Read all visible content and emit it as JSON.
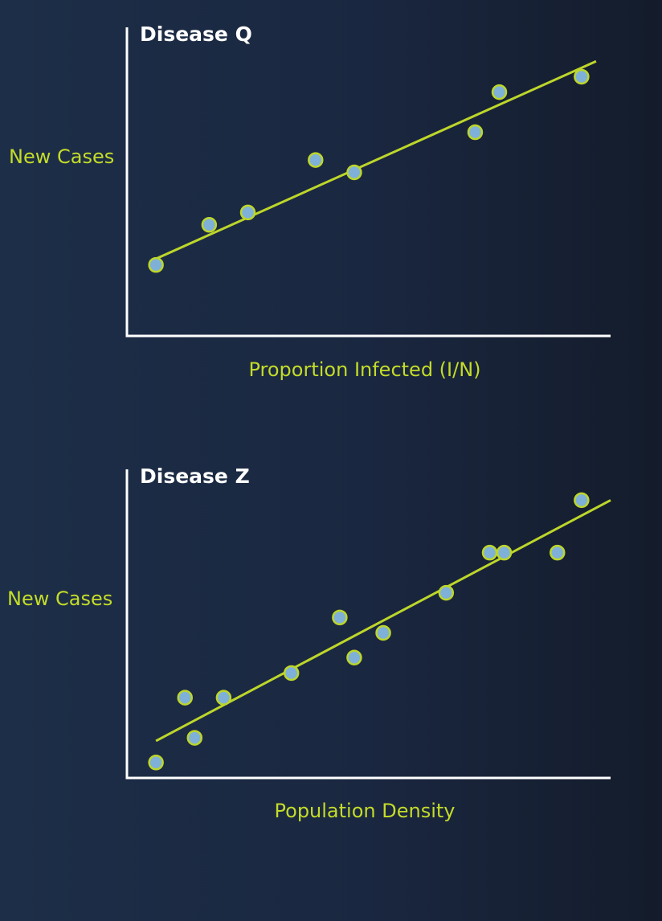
{
  "colors": {
    "axis": "#ffffff",
    "trend_line": "#bdd62a",
    "point_fill": "#7fb1d8",
    "point_stroke": "#bdd62a",
    "label": "#c4dc28",
    "title": "#ffffff"
  },
  "chart_data": [
    {
      "type": "scatter",
      "title": "Disease Q",
      "xlabel": "Proportion Infected (I/N)",
      "ylabel": "New Cases",
      "xlim": [
        0,
        10
      ],
      "ylim": [
        0,
        10
      ],
      "tick_labels": "none",
      "grid": false,
      "points": [
        {
          "x": 0.6,
          "y": 2.3
        },
        {
          "x": 1.7,
          "y": 3.6
        },
        {
          "x": 2.5,
          "y": 4.0
        },
        {
          "x": 3.9,
          "y": 5.7
        },
        {
          "x": 4.7,
          "y": 5.3
        },
        {
          "x": 7.2,
          "y": 6.6
        },
        {
          "x": 7.7,
          "y": 7.9
        },
        {
          "x": 9.4,
          "y": 8.4
        }
      ],
      "trend_line": [
        {
          "x": 0.6,
          "y": 2.5
        },
        {
          "x": 9.7,
          "y": 8.9
        }
      ]
    },
    {
      "type": "scatter",
      "title": "Disease Z",
      "xlabel": "Population Density",
      "ylabel": "New Cases",
      "xlim": [
        0,
        10
      ],
      "ylim": [
        0,
        10
      ],
      "tick_labels": "none",
      "grid": false,
      "points": [
        {
          "x": 0.6,
          "y": 0.5
        },
        {
          "x": 1.2,
          "y": 2.6
        },
        {
          "x": 1.4,
          "y": 1.3
        },
        {
          "x": 2.0,
          "y": 2.6
        },
        {
          "x": 3.4,
          "y": 3.4
        },
        {
          "x": 4.4,
          "y": 5.2
        },
        {
          "x": 4.7,
          "y": 3.9
        },
        {
          "x": 5.3,
          "y": 4.7
        },
        {
          "x": 6.6,
          "y": 6.0
        },
        {
          "x": 7.5,
          "y": 7.3
        },
        {
          "x": 7.8,
          "y": 7.3
        },
        {
          "x": 8.9,
          "y": 7.3
        },
        {
          "x": 9.4,
          "y": 9.0
        }
      ],
      "trend_line": [
        {
          "x": 0.6,
          "y": 1.2
        },
        {
          "x": 10.0,
          "y": 9.0
        }
      ]
    }
  ]
}
